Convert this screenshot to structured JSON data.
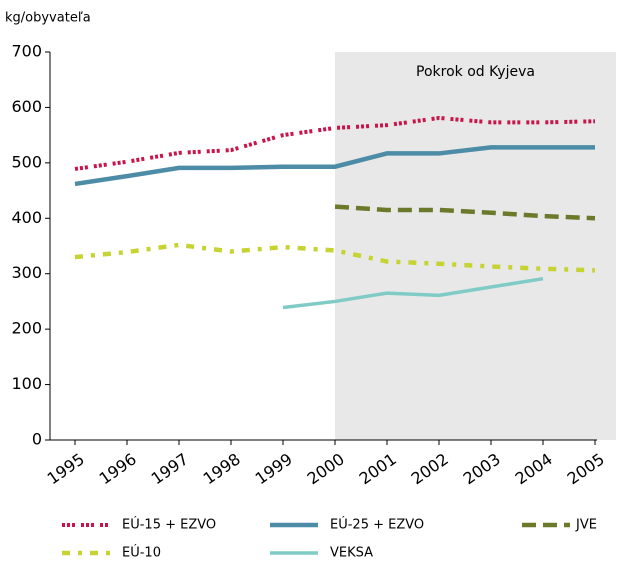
{
  "chart_data": {
    "type": "line",
    "y_label": "kg/obyvateľa",
    "annotation": "Pokrok od Kyjeva",
    "categories": [
      "1995",
      "1996",
      "1997",
      "1998",
      "1999",
      "2000",
      "2001",
      "2002",
      "2003",
      "2004",
      "2005"
    ],
    "series": [
      {
        "name": "EÚ-15 + EZVO",
        "color": "#c8144a",
        "values": [
          489,
          502,
          518,
          523,
          550,
          563,
          568,
          581,
          573,
          573,
          575
        ]
      },
      {
        "name": "EÚ-25 + EZVO",
        "color": "#4d8ca6",
        "values": [
          462,
          476,
          491,
          491,
          493,
          493,
          517,
          517,
          528,
          528,
          528
        ]
      },
      {
        "name": "JVE",
        "color": "#6b7a2a",
        "values": [
          null,
          null,
          null,
          null,
          null,
          421,
          415,
          415,
          410,
          404,
          400
        ]
      },
      {
        "name": "EÚ-10",
        "color": "#c6d332",
        "values": [
          330,
          339,
          352,
          340,
          348,
          342,
          322,
          318,
          313,
          309,
          306
        ]
      },
      {
        "name": "VEKSA",
        "color": "#80cbc6",
        "values": [
          null,
          null,
          null,
          null,
          239,
          250,
          265,
          261,
          276,
          291,
          null
        ]
      }
    ],
    "ylim": [
      0,
      700
    ],
    "yticks": [
      0,
      100,
      200,
      300,
      400,
      500,
      600,
      700
    ]
  }
}
